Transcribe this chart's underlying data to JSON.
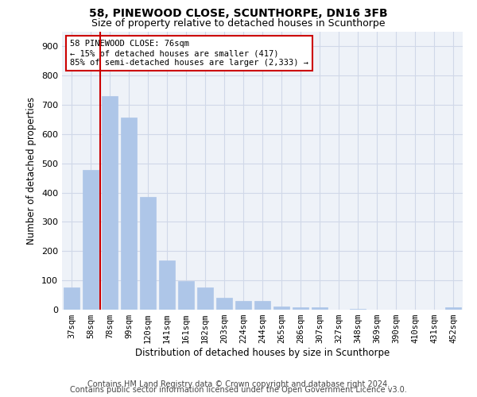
{
  "title": "58, PINEWOOD CLOSE, SCUNTHORPE, DN16 3FB",
  "subtitle": "Size of property relative to detached houses in Scunthorpe",
  "xlabel": "Distribution of detached houses by size in Scunthorpe",
  "ylabel": "Number of detached properties",
  "categories": [
    "37sqm",
    "58sqm",
    "78sqm",
    "99sqm",
    "120sqm",
    "141sqm",
    "161sqm",
    "182sqm",
    "203sqm",
    "224sqm",
    "244sqm",
    "265sqm",
    "286sqm",
    "307sqm",
    "327sqm",
    "348sqm",
    "369sqm",
    "390sqm",
    "410sqm",
    "431sqm",
    "452sqm"
  ],
  "values": [
    75,
    478,
    730,
    656,
    386,
    168,
    97,
    75,
    42,
    29,
    30,
    11,
    8,
    8,
    0,
    2,
    0,
    0,
    0,
    0,
    8
  ],
  "bar_color": "#aec6e8",
  "bar_edgecolor": "#aec6e8",
  "vline_color": "#cc0000",
  "annotation_text": "58 PINEWOOD CLOSE: 76sqm\n← 15% of detached houses are smaller (417)\n85% of semi-detached houses are larger (2,333) →",
  "annotation_box_edgecolor": "#cc0000",
  "annotation_box_facecolor": "#ffffff",
  "ylim": [
    0,
    950
  ],
  "yticks": [
    0,
    100,
    200,
    300,
    400,
    500,
    600,
    700,
    800,
    900
  ],
  "grid_color": "#d0d8e8",
  "background_color": "#eef2f8",
  "footer_line1": "Contains HM Land Registry data © Crown copyright and database right 2024.",
  "footer_line2": "Contains public sector information licensed under the Open Government Licence v3.0.",
  "title_fontsize": 10,
  "subtitle_fontsize": 9,
  "xlabel_fontsize": 8.5,
  "ylabel_fontsize": 8.5,
  "tick_fontsize": 7.5,
  "footer_fontsize": 7
}
